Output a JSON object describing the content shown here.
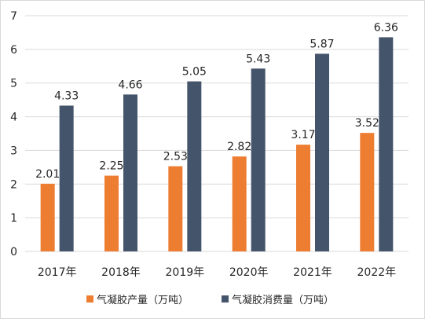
{
  "chart_data": {
    "type": "bar",
    "categories": [
      "2017年",
      "2018年",
      "2019年",
      "2020年",
      "2021年",
      "2022年"
    ],
    "series": [
      {
        "name": "气凝胶产量（万吨）",
        "values": [
          2.01,
          2.25,
          2.53,
          2.82,
          3.17,
          3.52
        ],
        "color": "#ed7d31"
      },
      {
        "name": "气凝胶消费量（万吨）",
        "values": [
          4.33,
          4.66,
          5.05,
          5.43,
          5.87,
          6.36
        ],
        "color": "#44546a"
      }
    ],
    "yticks": [
      "0",
      "1",
      "2",
      "3",
      "4",
      "5",
      "6",
      "7"
    ],
    "ylim": [
      0,
      7
    ],
    "grid": true,
    "data_labels": true,
    "legend_position": "bottom",
    "title": "",
    "xlabel": "",
    "ylabel": ""
  }
}
